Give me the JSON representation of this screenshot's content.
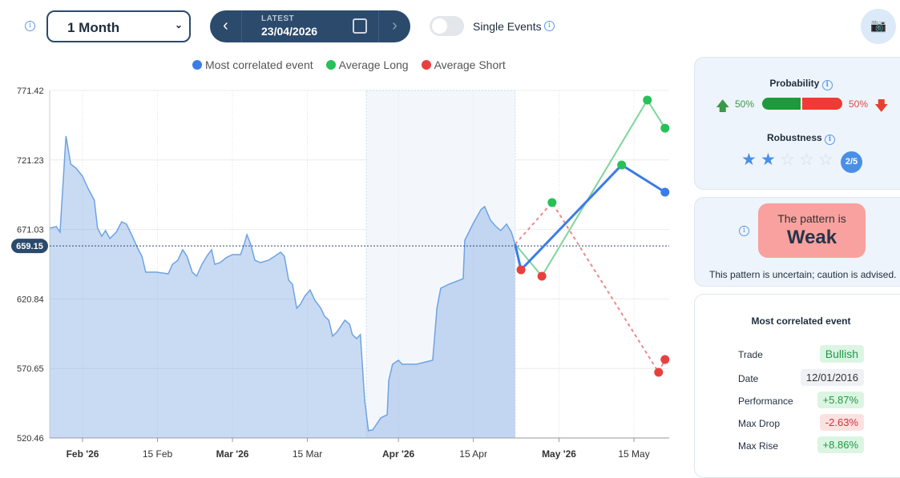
{
  "toolbar": {
    "range_value": "1 Month",
    "date_label": "LATEST",
    "date_value": "23/04/2026",
    "single_events_label": "Single Events"
  },
  "legend": [
    {
      "label": "Most correlated event",
      "color": "#3b7ce6"
    },
    {
      "label": "Average Long",
      "color": "#27c15a"
    },
    {
      "label": "Average Short",
      "color": "#e84040"
    }
  ],
  "chart_data": {
    "type": "line",
    "ylim": [
      520.46,
      771.42
    ],
    "y_ticks": [
      "771.42",
      "721.23",
      "671.03",
      "620.84",
      "570.65",
      "520.46"
    ],
    "x_ticks": [
      {
        "label": "Feb '26",
        "day": 0,
        "bold": true
      },
      {
        "label": "15 Feb",
        "day": 14
      },
      {
        "label": "Mar '26",
        "day": 28,
        "bold": true
      },
      {
        "label": "15 Mar",
        "day": 42
      },
      {
        "label": "Apr '26",
        "day": 59,
        "bold": true
      },
      {
        "label": "15 Apr",
        "day": 73
      },
      {
        "label": "May '26",
        "day": 89,
        "bold": true
      },
      {
        "label": "15 May",
        "day": 103
      }
    ],
    "x_unit": "days since 1 Feb 2026",
    "current_value": "659.15",
    "highlight_range": [
      53,
      80.8
    ],
    "price": [
      [
        -6.1,
        672.0
      ],
      [
        -4.9,
        673.1
      ],
      [
        -4.2,
        669.1
      ],
      [
        -3.1,
        738.5
      ],
      [
        -2.2,
        718.2
      ],
      [
        -1.2,
        715.3
      ],
      [
        0,
        709.5
      ],
      [
        1.0,
        700.9
      ],
      [
        2.2,
        692.2
      ],
      [
        2.8,
        672.0
      ],
      [
        3.6,
        666.2
      ],
      [
        4.3,
        670.2
      ],
      [
        5.1,
        664.5
      ],
      [
        6.3,
        669.1
      ],
      [
        7.3,
        676.6
      ],
      [
        8.2,
        674.9
      ],
      [
        9.3,
        666.2
      ],
      [
        10.3,
        657.5
      ],
      [
        11.1,
        651.7
      ],
      [
        11.8,
        640.2
      ],
      [
        13.8,
        640.2
      ],
      [
        16.0,
        639.0
      ],
      [
        16.8,
        645.9
      ],
      [
        17.8,
        648.8
      ],
      [
        18.7,
        656.4
      ],
      [
        19.5,
        651.7
      ],
      [
        20.5,
        640.2
      ],
      [
        21.3,
        637.3
      ],
      [
        22.3,
        645.9
      ],
      [
        23.2,
        651.7
      ],
      [
        24.1,
        656.4
      ],
      [
        24.7,
        645.9
      ],
      [
        25.7,
        647.1
      ],
      [
        26.8,
        650.6
      ],
      [
        28.0,
        652.9
      ],
      [
        29.5,
        652.9
      ],
      [
        30.2,
        660.4
      ],
      [
        30.7,
        667.3
      ],
      [
        31.4,
        660.4
      ],
      [
        32.2,
        648.8
      ],
      [
        33.2,
        647.1
      ],
      [
        34.7,
        648.8
      ],
      [
        35.9,
        651.7
      ],
      [
        37.0,
        654.6
      ],
      [
        37.7,
        651.7
      ],
      [
        38.5,
        634.4
      ],
      [
        39.2,
        631.5
      ],
      [
        40.0,
        614.2
      ],
      [
        40.7,
        617.1
      ],
      [
        41.5,
        622.8
      ],
      [
        42.5,
        627.4
      ],
      [
        43.4,
        619.9
      ],
      [
        44.5,
        614.2
      ],
      [
        45.2,
        608.4
      ],
      [
        46.0,
        605.5
      ],
      [
        46.7,
        594.0
      ],
      [
        47.5,
        596.9
      ],
      [
        48.2,
        600.9
      ],
      [
        49.0,
        605.5
      ],
      [
        49.9,
        602.6
      ],
      [
        50.4,
        595.1
      ],
      [
        51.2,
        592.2
      ],
      [
        51.9,
        595.1
      ],
      [
        52.7,
        547.7
      ],
      [
        53.4,
        525.7
      ],
      [
        54.2,
        526.3
      ],
      [
        54.9,
        530.3
      ],
      [
        55.7,
        534.9
      ],
      [
        56.9,
        537.3
      ],
      [
        57.2,
        562.1
      ],
      [
        57.9,
        573.7
      ],
      [
        59.0,
        576.6
      ],
      [
        59.7,
        573.7
      ],
      [
        62.4,
        573.7
      ],
      [
        65.4,
        576.6
      ],
      [
        66.2,
        614.2
      ],
      [
        66.9,
        628.6
      ],
      [
        68.4,
        631.5
      ],
      [
        71.1,
        635.5
      ],
      [
        71.4,
        663.3
      ],
      [
        72.9,
        674.9
      ],
      [
        74.4,
        685.3
      ],
      [
        75.1,
        687.6
      ],
      [
        76.2,
        677.8
      ],
      [
        77.1,
        673.7
      ],
      [
        78.1,
        670.2
      ],
      [
        79.2,
        674.9
      ],
      [
        80.1,
        669.1
      ],
      [
        80.8,
        660.4
      ]
    ],
    "series": [
      {
        "name": "Most correlated event",
        "color": "#3b7ce6",
        "style": "solid",
        "points": [
          [
            80.8,
            660.4,
            null
          ],
          [
            81.9,
            641.9,
            "#e84040"
          ],
          [
            100.7,
            717.6,
            "#27c15a"
          ],
          [
            108.8,
            698.0,
            "#3b7ce6"
          ]
        ]
      },
      {
        "name": "Average Long",
        "color": "#7fd69a",
        "style": "solid",
        "points": [
          [
            80.8,
            660.4,
            null
          ],
          [
            85.8,
            637.3,
            "#e84040"
          ],
          [
            105.5,
            764.5,
            "#27c15a"
          ],
          [
            108.8,
            744.2,
            "#27c15a"
          ]
        ]
      },
      {
        "name": "Average Short",
        "color": "#ec8a8a",
        "style": "dashed",
        "points": [
          [
            80.8,
            660.4,
            null
          ],
          [
            87.7,
            690.5,
            "#27c15a"
          ],
          [
            107.6,
            567.9,
            "#e84040"
          ],
          [
            108.8,
            577.1,
            "#e84040"
          ]
        ]
      }
    ]
  },
  "probability": {
    "title": "Probability",
    "up": "50%",
    "down": "50%",
    "up_fraction": 0.5
  },
  "robustness": {
    "title": "Robustness",
    "stars": 2,
    "max": 5,
    "badge": "2/5"
  },
  "pattern": {
    "prefix": "The pattern is",
    "strength": "Weak",
    "note": "This pattern is uncertain; caution is advised."
  },
  "event": {
    "title": "Most correlated event",
    "rows": [
      {
        "label": "Trade",
        "value": "Bullish",
        "bg": "#dcf5e3",
        "fg": "#1e9a45"
      },
      {
        "label": "Date",
        "value": "12/01/2016",
        "bg": "#eef1f5",
        "fg": "#333"
      },
      {
        "label": "Performance",
        "value": "+5.87%",
        "bg": "#dcf5e3",
        "fg": "#1e9a45"
      },
      {
        "label": "Max Drop",
        "value": "-2.63%",
        "bg": "#fde1e1",
        "fg": "#d0303a"
      },
      {
        "label": "Max Rise",
        "value": "+8.86%",
        "bg": "#dcf5e3",
        "fg": "#1e9a45"
      }
    ]
  }
}
